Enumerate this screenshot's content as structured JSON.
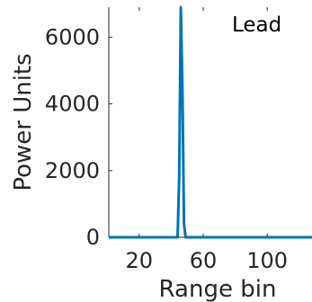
{
  "chart_data": {
    "type": "line",
    "title": "",
    "xlabel": "Range bin",
    "ylabel": "Power Units",
    "xlim": [
      1,
      128
    ],
    "ylim": [
      0,
      6900
    ],
    "xticks": [
      20,
      60,
      100
    ],
    "xtick_labels": [
      "20",
      "60",
      "100"
    ],
    "yticks": [
      0,
      2000,
      4000,
      6000
    ],
    "ytick_labels": [
      "0",
      "2000",
      "4000",
      "6000"
    ],
    "grid": false,
    "legend": {
      "entries": [
        "Lead"
      ],
      "placement": "top-right"
    },
    "series": [
      {
        "name": "Lead",
        "color": "#0072bd",
        "x": [
          1,
          44,
          45,
          46,
          47,
          48,
          49,
          128
        ],
        "y": [
          0,
          0,
          1800,
          6900,
          4500,
          400,
          0,
          0
        ]
      }
    ]
  }
}
